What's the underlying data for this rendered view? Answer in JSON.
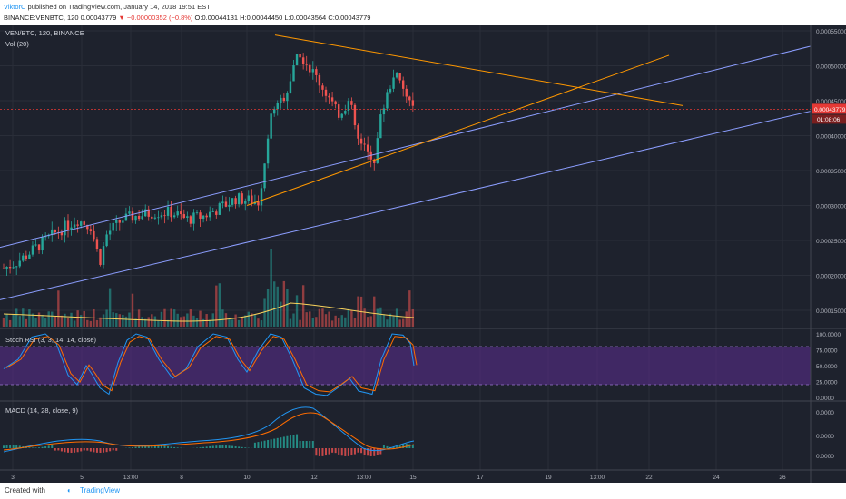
{
  "header": {
    "author": "ViktorC",
    "published": " published on TradingView.com, January 14, 2018 19:51 EST",
    "symbol_line": "BINANCE:VENBTC, 120",
    "last": " 0.00043779",
    "change": " −0.00000352 (−0.8%)",
    "ohlc": " O:0.00044131 H:0.00044450 L:0.00043564 C:0.00043779"
  },
  "legend": {
    "pair": "VEN/BTC, 120, BINANCE",
    "volume": "Vol (20)",
    "stoch": "Stoch RSI (3, 3, 14, 14, close)",
    "macd": "MACD (14, 28, close, 9)"
  },
  "price_axis": {
    "ticks": [
      "0.00055000",
      "0.00050000",
      "0.00045000",
      "0.00040000",
      "0.00035000",
      "0.00030000",
      "0.00025000",
      "0.00020000",
      "0.00015000"
    ],
    "current_price": "0.00043779",
    "countdown": "01:08:06"
  },
  "stoch_axis": {
    "ticks": [
      "100.0000",
      "75.0000",
      "50.0000",
      "25.0000",
      "0.0000"
    ]
  },
  "macd_axis": {
    "ticks": [
      "0.0000",
      "0.0000",
      "0.0000"
    ]
  },
  "time_axis": {
    "labels": [
      "3",
      "5",
      "13:00",
      "8",
      "10",
      "12",
      "13:00",
      "15",
      "17",
      "19",
      "13:00",
      "22",
      "24",
      "26"
    ]
  },
  "colors": {
    "background": "#1e222d",
    "up": "#26a69a",
    "down": "#ef5350",
    "trend_orange": "#ff9800",
    "channel_blue": "#8c9eff",
    "stoch_band": "#5c2d91",
    "price_line": "#e53935"
  },
  "footer": {
    "created": "Created with",
    "brand": "TradingView"
  },
  "chart_data": [
    {
      "type": "candlestick",
      "title": "VEN/BTC, 120, BINANCE",
      "ylim": [
        0.00013,
        0.00057
      ],
      "last_price": 0.00043779,
      "open": 0.00044131,
      "high": 0.0004445,
      "low": 0.00043564,
      "close": 0.00043779,
      "x_labels": [
        "3",
        "5",
        "13:00",
        "8",
        "10",
        "12",
        "13:00",
        "15",
        "17",
        "19",
        "13:00",
        "22",
        "24",
        "26"
      ]
    },
    {
      "type": "line",
      "title": "Stoch RSI (3, 3, 14, 14, close)",
      "ylim": [
        0,
        100
      ],
      "bands": [
        20,
        80
      ]
    },
    {
      "type": "line",
      "title": "MACD (14, 28, close, 9)"
    }
  ]
}
